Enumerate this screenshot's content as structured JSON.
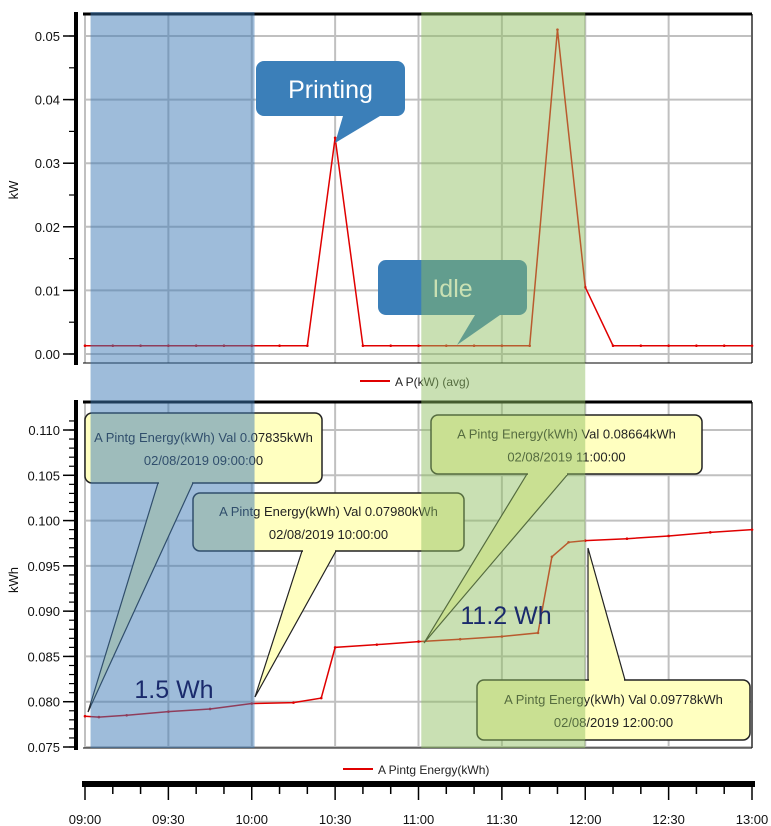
{
  "chart_data": [
    {
      "type": "line",
      "ylabel": "kW",
      "ylim": [
        0,
        0.052
      ],
      "yticks": [
        "0.00",
        "0.01",
        "0.02",
        "0.03",
        "0.04",
        "0.05"
      ],
      "grid": true,
      "legend_position": "bottom",
      "series": [
        {
          "name": "A P(kW) (avg)",
          "color": "#e00000",
          "x": [
            "09:00",
            "09:10",
            "09:20",
            "09:30",
            "09:40",
            "09:50",
            "10:00",
            "10:10",
            "10:20",
            "10:30",
            "10:40",
            "10:50",
            "11:00",
            "11:10",
            "11:20",
            "11:30",
            "11:40",
            "11:50",
            "12:00",
            "12:10",
            "12:20",
            "12:30",
            "12:40",
            "12:50",
            "13:00"
          ],
          "y": [
            0.0013,
            0.0013,
            0.0013,
            0.0013,
            0.0013,
            0.0013,
            0.0013,
            0.0013,
            0.0013,
            0.034,
            0.0013,
            0.0013,
            0.0013,
            0.0013,
            0.0013,
            0.0013,
            0.0013,
            0.051,
            0.0105,
            0.0013,
            0.0013,
            0.0013,
            0.0013,
            0.0013,
            0.0013
          ]
        }
      ],
      "annotations": [
        {
          "text": "Printing",
          "x": "10:30",
          "y": 0.034
        },
        {
          "text": "Idle",
          "x": "11:15",
          "y": 0.0013
        }
      ]
    },
    {
      "type": "line",
      "ylabel": "kWh",
      "ylim": [
        0.075,
        0.112
      ],
      "yticks": [
        "0.075",
        "0.080",
        "0.085",
        "0.090",
        "0.095",
        "0.100",
        "0.105",
        "0.110"
      ],
      "grid": true,
      "legend_position": "bottom",
      "series": [
        {
          "name": "A Pintg Energy(kWh)",
          "color": "#e00000",
          "x": [
            "09:00",
            "09:05",
            "09:15",
            "09:30",
            "09:45",
            "10:00",
            "10:15",
            "10:25",
            "10:30",
            "10:45",
            "11:00",
            "11:15",
            "11:30",
            "11:43",
            "11:48",
            "11:54",
            "12:00",
            "12:15",
            "12:30",
            "12:45",
            "13:00"
          ],
          "y": [
            0.0784,
            0.0783,
            0.0785,
            0.0789,
            0.0792,
            0.0798,
            0.0799,
            0.0804,
            0.086,
            0.0863,
            0.08664,
            0.0869,
            0.0872,
            0.0876,
            0.096,
            0.0976,
            0.09778,
            0.098,
            0.0983,
            0.0987,
            0.099
          ]
        }
      ],
      "callouts": [
        {
          "line1": "A Pintg Energy(kWh) Val 0.07835kWh",
          "line2": "02/08/2019 09:00:00"
        },
        {
          "line1": "A Pintg Energy(kWh) Val 0.07980kWh",
          "line2": "02/08/2019 10:00:00"
        },
        {
          "line1": "A Pintg Energy(kWh) Val 0.08664kWh",
          "line2": "02/08/2019 11:00:00"
        },
        {
          "line1": "A Pintg Energy(kWh) Val 0.09778kWh",
          "line2": "02/08/2019 12:00:00"
        }
      ],
      "labels": [
        "1.5 Wh",
        "11.2 Wh"
      ]
    }
  ],
  "xaxis": {
    "ticks": [
      "09:00",
      "09:30",
      "10:00",
      "10:30",
      "11:00",
      "11:30",
      "12:00",
      "12:30",
      "13:00"
    ]
  },
  "bands": [
    {
      "from": "09:02",
      "to": "10:01",
      "color": "#3d7ab5"
    },
    {
      "from": "11:01",
      "to": "12:00",
      "color": "#8fbf60"
    }
  ],
  "colors": {
    "callout_blue": "#3b7fb9",
    "callout_yellow": "#ffffc0",
    "wh_label": "#1a2a6c"
  }
}
